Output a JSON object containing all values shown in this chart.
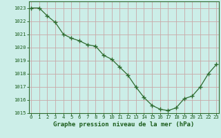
{
  "x": [
    0,
    1,
    2,
    3,
    4,
    5,
    6,
    7,
    8,
    9,
    10,
    11,
    12,
    13,
    14,
    15,
    16,
    17,
    18,
    19,
    20,
    21,
    22,
    23
  ],
  "y": [
    1023.0,
    1023.0,
    1022.4,
    1021.9,
    1021.0,
    1020.7,
    1020.5,
    1020.2,
    1020.1,
    1019.4,
    1019.1,
    1018.5,
    1017.9,
    1017.0,
    1016.2,
    1015.6,
    1015.3,
    1015.2,
    1015.4,
    1016.1,
    1016.3,
    1017.0,
    1018.0,
    1018.7
  ],
  "ylim": [
    1015,
    1023.5
  ],
  "yticks": [
    1015,
    1016,
    1017,
    1018,
    1019,
    1020,
    1021,
    1022,
    1023
  ],
  "xticks": [
    0,
    1,
    2,
    3,
    4,
    5,
    6,
    7,
    8,
    9,
    10,
    11,
    12,
    13,
    14,
    15,
    16,
    17,
    18,
    19,
    20,
    21,
    22,
    23
  ],
  "line_color": "#2d6a2d",
  "marker": "+",
  "marker_size": 4.0,
  "line_width": 0.9,
  "bg_plot": "#cceee8",
  "bg_fig": "#cceee8",
  "grid_color": "#c8a8a8",
  "xlabel": "Graphe pression niveau de la mer (hPa)",
  "xlabel_color": "#1a5c1a",
  "xlabel_fontsize": 6.5,
  "tick_color": "#1a5c1a",
  "tick_fontsize": 5.2,
  "spine_color": "#2d6a2d",
  "xlim": [
    -0.3,
    23.3
  ]
}
